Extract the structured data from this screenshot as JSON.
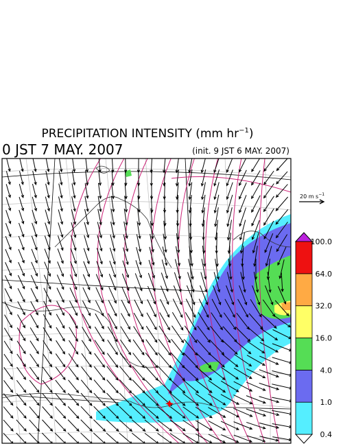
{
  "title": {
    "text": "PRECIPITATION INTENSITY (mm hr",
    "superscript": "−1",
    "close": ")"
  },
  "valid_time": "0 JST 7 MAY. 2007",
  "init_time": "(init. 9 JST 6 MAY. 2007)",
  "wind_reference": {
    "text": "20 m s",
    "superscript": "−1"
  },
  "colorbar": {
    "levels": [
      0.4,
      {
        "value": 1,
        "label": "1.0"
      },
      {
        "value": 4,
        "label": "4.0"
      },
      {
        "value": 16,
        "label": "16.0"
      },
      {
        "value": 32,
        "label": "32.0"
      },
      {
        "value": 64,
        "label": "64.0"
      },
      {
        "value": 100,
        "label": "100.0"
      }
    ],
    "colors": [
      "#55eeff",
      "#6b6bf0",
      "#55dd55",
      "#ffff66",
      "#ffaa44",
      "#ee1111"
    ],
    "over_color": "#bb22dd",
    "under_color": "#ffffff"
  }
}
